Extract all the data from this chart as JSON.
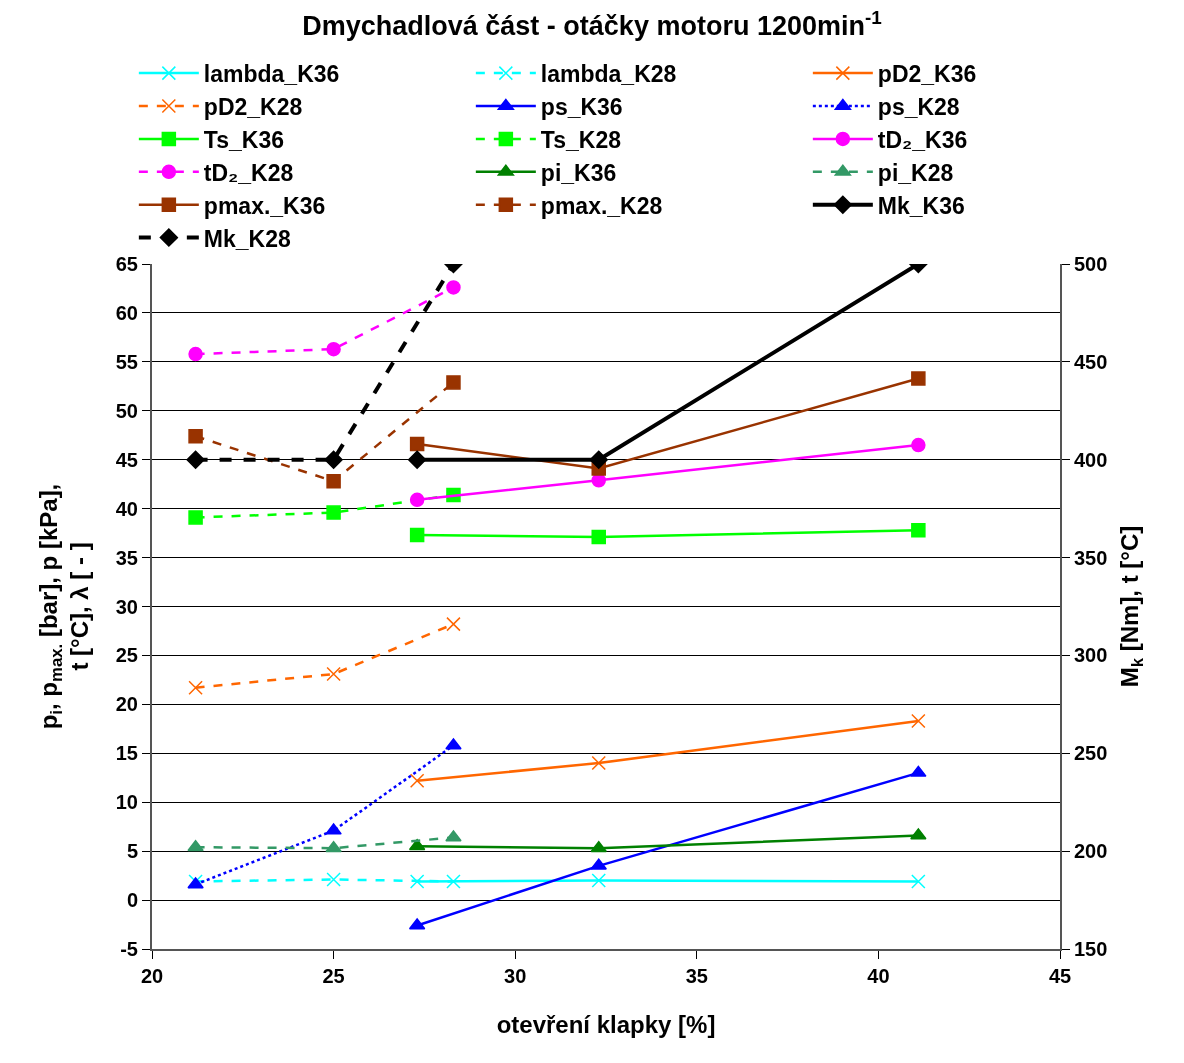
{
  "chart_data": {
    "type": "line",
    "title": "Dmychadlová část - otáčky motoru 1200min$^{-1}$",
    "xlabel": "otevření klapky [%]",
    "ylabel": "p$_{i}$, p$_{max.}$ [bar], p [kPa],\nt [°C], λ [ - ]",
    "y2label": "M$_{k}$ [Nm], t [°C]",
    "xlim": [
      20,
      45
    ],
    "xticks": [
      20,
      25,
      30,
      35,
      40,
      45
    ],
    "ylim": [
      -5,
      65
    ],
    "yticks": [
      -5,
      0,
      5,
      10,
      15,
      20,
      25,
      30,
      35,
      40,
      45,
      50,
      55,
      60,
      65
    ],
    "y2lim": [
      150,
      500
    ],
    "y2ticks": [
      150,
      200,
      250,
      300,
      350,
      400,
      450,
      500
    ],
    "grid": "y",
    "legend": "top",
    "series": [
      {
        "name": "lambda_K36",
        "color": "#00ffff",
        "marker": "cross",
        "line_style": "solid",
        "x": [
          27.3,
          32.3,
          41.1
        ],
        "values": [
          1.9,
          2.0,
          1.9
        ]
      },
      {
        "name": "lambda_K28",
        "color": "#00ffff",
        "marker": "cross",
        "line_style": "dashed",
        "x": [
          21.2,
          25.0,
          28.3
        ],
        "values": [
          1.9,
          2.1,
          1.9
        ]
      },
      {
        "name": "pD2_K36",
        "color": "#ff6600",
        "marker": "cross",
        "line_style": "solid",
        "x": [
          27.3,
          32.3,
          41.1
        ],
        "values": [
          12.2,
          14.0,
          18.3
        ]
      },
      {
        "name": "pD2_K28",
        "color": "#ff6600",
        "marker": "cross",
        "line_style": "dashed",
        "x": [
          21.2,
          25.0,
          28.3
        ],
        "values": [
          21.7,
          23.1,
          28.2
        ]
      },
      {
        "name": "ps_K36",
        "color": "#0000ff",
        "marker": "triangle",
        "line_style": "solid",
        "x": [
          27.3,
          32.3,
          41.1
        ],
        "values": [
          -2.6,
          3.5,
          13.0
        ]
      },
      {
        "name": "ps_K28",
        "color": "#0000ff",
        "marker": "triangle",
        "line_style": "dotted",
        "x": [
          21.2,
          25.0,
          28.3
        ],
        "values": [
          1.6,
          7.1,
          15.8
        ]
      },
      {
        "name": "Ts_K36",
        "color": "#00ff00",
        "marker": "square",
        "line_style": "solid",
        "x": [
          27.3,
          32.3,
          41.1
        ],
        "values": [
          37.3,
          37.1,
          37.8
        ]
      },
      {
        "name": "Ts_K28",
        "color": "#00ff00",
        "marker": "square",
        "line_style": "dashed",
        "x": [
          21.2,
          25.0,
          28.3
        ],
        "values": [
          39.1,
          39.6,
          41.4
        ]
      },
      {
        "name": "tD₂_K36",
        "color": "#ff00ff",
        "marker": "circle",
        "line_style": "solid",
        "x": [
          27.3,
          32.3,
          41.1
        ],
        "values": [
          40.9,
          42.9,
          46.5
        ]
      },
      {
        "name": "tD₂_K28",
        "color": "#ff00ff",
        "marker": "circle",
        "line_style": "dashed",
        "x": [
          21.2,
          25.0,
          28.3
        ],
        "values": [
          55.8,
          56.3,
          62.6
        ]
      },
      {
        "name": "pi_K36",
        "color": "#008000",
        "marker": "triangle",
        "line_style": "solid",
        "x": [
          27.3,
          32.3,
          41.1
        ],
        "values": [
          5.5,
          5.3,
          6.6
        ]
      },
      {
        "name": "pi_K28",
        "color": "#339966",
        "marker": "triangle",
        "line_style": "dashed",
        "x": [
          21.2,
          25.0,
          28.3
        ],
        "values": [
          5.4,
          5.3,
          6.4
        ]
      },
      {
        "name": "pmax._K36",
        "color": "#993300",
        "marker": "square",
        "line_style": "solid",
        "x": [
          27.3,
          32.3,
          41.1
        ],
        "values": [
          46.6,
          44.1,
          53.3
        ]
      },
      {
        "name": "pmax._K28",
        "color": "#993300",
        "marker": "square",
        "line_style": "dashed",
        "x": [
          21.2,
          25.0,
          28.3
        ],
        "values": [
          47.4,
          42.8,
          52.9
        ]
      },
      {
        "name": "Mk_K36",
        "color": "#000000",
        "marker": "diamond",
        "line_style": "solid",
        "axis": "y2",
        "x": [
          27.3,
          32.3,
          41.1
        ],
        "values": [
          400,
          400,
          500
        ]
      },
      {
        "name": "Mk_K28",
        "color": "#000000",
        "marker": "diamond",
        "line_style": "dashed",
        "axis": "y2",
        "x": [
          21.2,
          25.0,
          28.3
        ],
        "values": [
          400,
          400,
          500
        ]
      }
    ]
  }
}
